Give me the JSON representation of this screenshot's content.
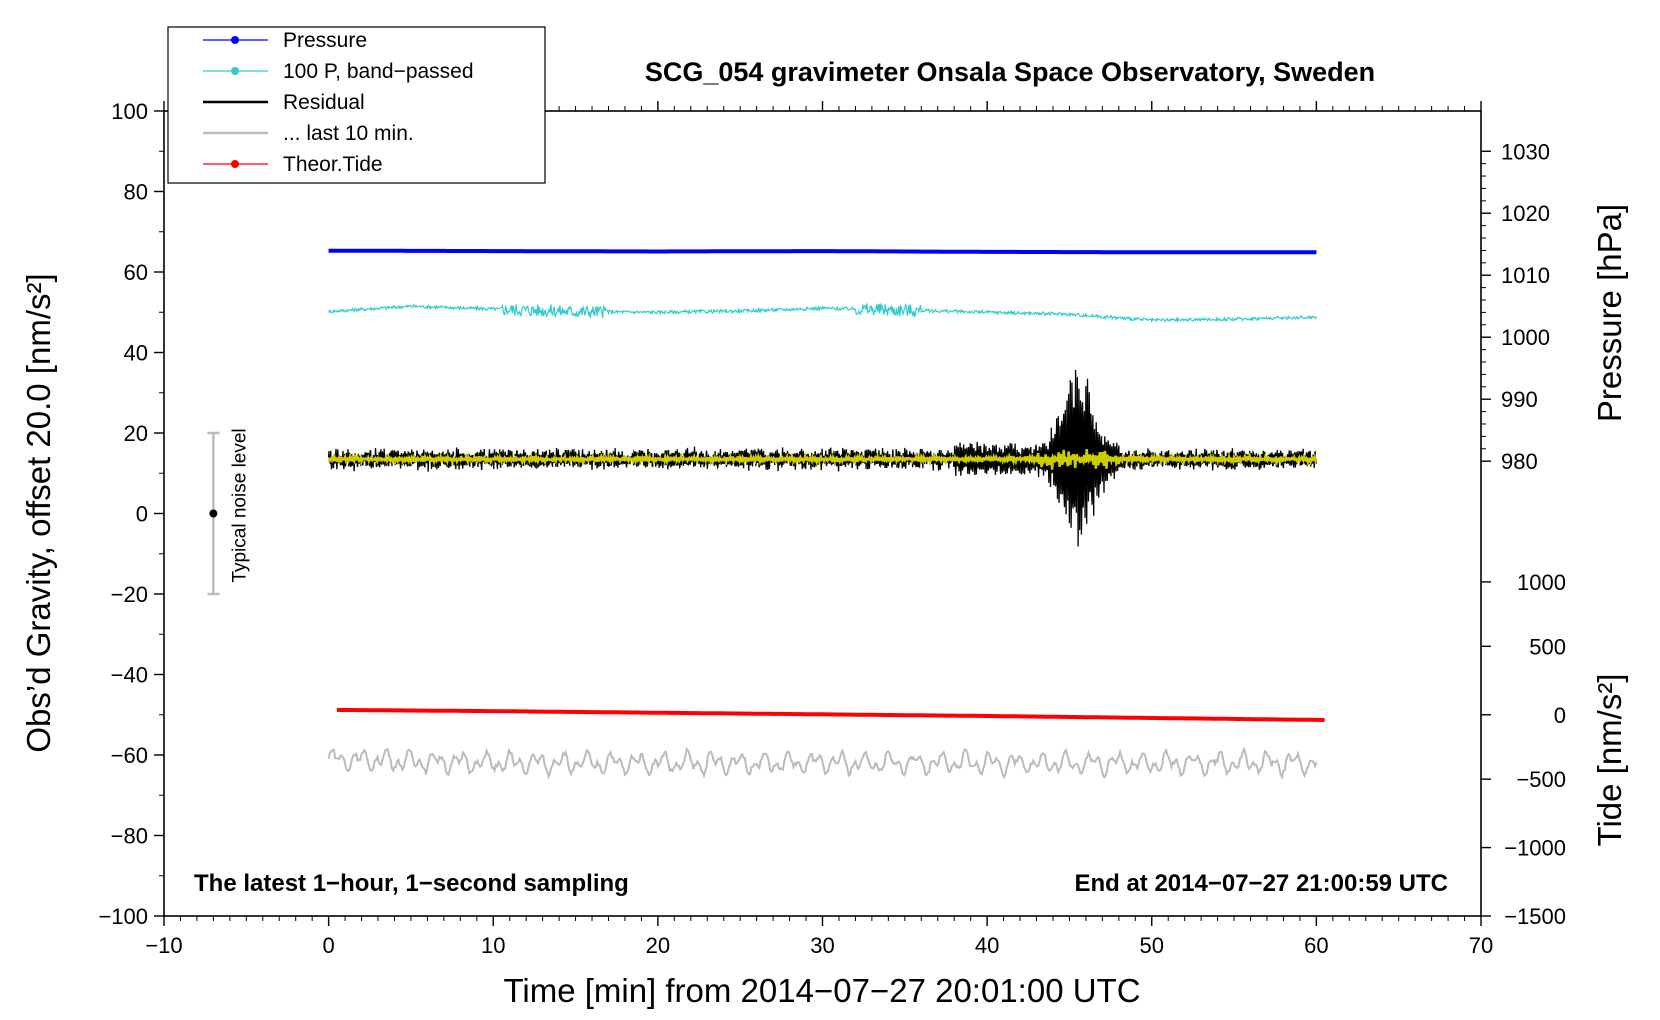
{
  "chart_data": {
    "type": "line",
    "title": "SCG_054 gravimeter Onsala Space Observatory, Sweden",
    "xlabel": "Time [min] from 2014−07−27 20:01:00 UTC",
    "ylabel": "Obs’d Gravity, offset 20.0 [nm/s²]",
    "xlim": [
      -10,
      70
    ],
    "ylim": [
      -100,
      100
    ],
    "xticks": [
      -10,
      0,
      10,
      20,
      30,
      40,
      50,
      60,
      70
    ],
    "xtick_labels": [
      "−10",
      "0",
      "10",
      "20",
      "30",
      "40",
      "50",
      "60",
      "70"
    ],
    "yticks": [
      -100,
      -80,
      -60,
      -40,
      -20,
      0,
      20,
      40,
      60,
      80,
      100
    ],
    "ytick_labels": [
      "−100",
      "−80",
      "−60",
      "−40",
      "−20",
      "0",
      "20",
      "40",
      "60",
      "80",
      "100"
    ],
    "right_pressure_axis": {
      "label": "Pressure [hPa]",
      "ticks": [
        980,
        990,
        1000,
        1010,
        1020,
        1030
      ],
      "tick_labels": [
        "980",
        "990",
        "1000",
        "1010",
        "1020",
        "1030"
      ],
      "gravity_equivalent": [
        13,
        28.4,
        43.8,
        59.2,
        74.6,
        90
      ]
    },
    "right_tide_axis": {
      "label": "Tide [nm/s²]",
      "ticks": [
        -1500,
        -1000,
        -500,
        0,
        500,
        1000
      ],
      "tick_labels": [
        "−1500",
        "−1000",
        "−500",
        "0",
        "500",
        "1000"
      ],
      "gravity_equivalent": [
        -100,
        -83,
        -66,
        -50,
        -33,
        -17
      ]
    },
    "legend": {
      "position": "top-left",
      "entries": [
        {
          "label": "Pressure",
          "color": "#0000ff",
          "marker": true
        },
        {
          "label": "100 P, band−passed",
          "color": "#33cccc",
          "marker": true
        },
        {
          "label": "Residual",
          "color": "#000000",
          "marker": false
        },
        {
          "label": "... last 10 min.",
          "color": "#bbbbbb",
          "marker": false
        },
        {
          "label": "Theor.Tide",
          "color": "#ff0000",
          "marker": true
        }
      ]
    },
    "series": [
      {
        "name": "Pressure",
        "color": "#0000ff",
        "x": [
          0,
          10,
          20,
          30,
          40,
          50,
          60
        ],
        "y": [
          65.3,
          65.2,
          65.1,
          65.2,
          65.0,
          64.9,
          64.9
        ]
      },
      {
        "name": "100 P, band−passed",
        "color": "#33cccc",
        "x": [
          0,
          5,
          10,
          15,
          20,
          25,
          30,
          35,
          40,
          45,
          50,
          55,
          60
        ],
        "y": [
          50.2,
          51.5,
          50.8,
          50.2,
          50.0,
          50.3,
          51.0,
          50.5,
          50.0,
          49.5,
          48.0,
          48.3,
          48.8
        ]
      },
      {
        "name": "Residual",
        "color": "#000000",
        "x": [
          0,
          10,
          20,
          30,
          40,
          43,
          44,
          45,
          46,
          47,
          48,
          50,
          60
        ],
        "y": [
          13,
          13,
          13.5,
          13.5,
          14,
          30,
          -10,
          41,
          -12,
          20,
          14,
          13.5,
          14
        ]
      },
      {
        "name": "... last 10 min.",
        "color": "#bbbbbb",
        "x": [
          0,
          10,
          20,
          30,
          40,
          50,
          60
        ],
        "y": [
          -61,
          -62,
          -62,
          -62,
          -62,
          -62,
          -62
        ]
      },
      {
        "name": "Theor.Tide",
        "color": "#ff0000",
        "x": [
          0.5,
          10,
          20,
          30,
          40,
          50,
          60.5
        ],
        "y": [
          -48.8,
          -49.1,
          -49.5,
          -49.9,
          -50.3,
          -50.8,
          -51.3
        ]
      }
    ],
    "noise_bar": {
      "label": "Typical noise level",
      "x": -7,
      "center": 0,
      "half_range": 20
    },
    "annotations": {
      "bottom_left": "The latest 1−hour, 1−second sampling",
      "bottom_right": "End at 2014−07−27 21:00:59 UTC"
    },
    "grid": false
  }
}
